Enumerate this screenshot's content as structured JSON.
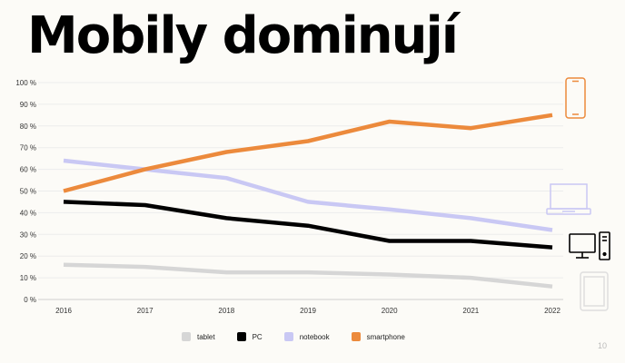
{
  "slide": {
    "title": "Mobily dominují",
    "page_number": "10"
  },
  "chart_data": {
    "type": "line",
    "categories": [
      "2016",
      "2017",
      "2018",
      "2019",
      "2020",
      "2021",
      "2022"
    ],
    "ylim": [
      0,
      100
    ],
    "yticks": [
      0,
      10,
      20,
      30,
      40,
      50,
      60,
      70,
      80,
      90,
      100
    ],
    "ytick_labels": [
      "0 %",
      "10 %",
      "20 %",
      "30 %",
      "40 %",
      "50 %",
      "60 %",
      "70 %",
      "80 %",
      "90 %",
      "100 %"
    ],
    "grid": true,
    "legend_position": "bottom",
    "series": [
      {
        "name": "tablet",
        "color": "#d6d6d6",
        "icon": "tablet-icon",
        "values": [
          16,
          15,
          12.5,
          12.5,
          11.5,
          10,
          6
        ]
      },
      {
        "name": "PC",
        "color": "#000000",
        "icon": "desktop-pc-icon",
        "values": [
          45,
          43.5,
          37.5,
          34,
          27,
          27,
          24
        ]
      },
      {
        "name": "notebook",
        "color": "#c9c8f4",
        "icon": "laptop-icon",
        "values": [
          64,
          60,
          56,
          45,
          41.5,
          37.5,
          32
        ]
      },
      {
        "name": "smartphone",
        "color": "#ec8a3c",
        "icon": "smartphone-icon",
        "values": [
          50,
          60,
          68,
          73,
          82,
          79,
          85
        ]
      }
    ]
  }
}
